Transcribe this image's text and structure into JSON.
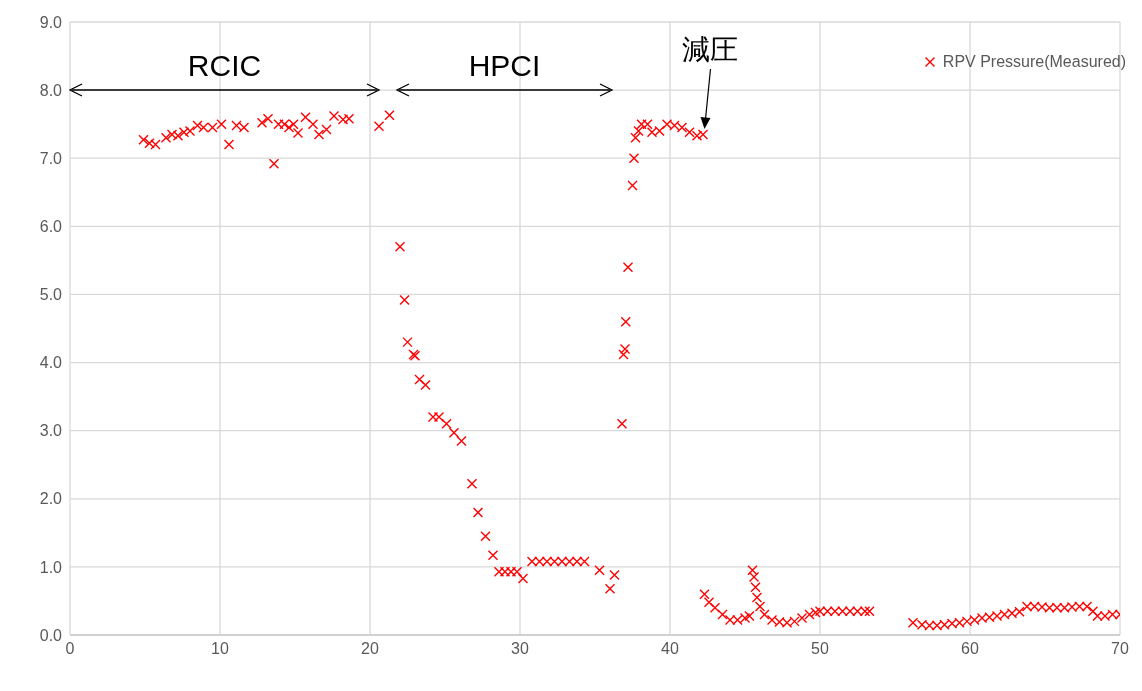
{
  "chart_data": {
    "type": "scatter",
    "marker": "cross",
    "grid": true,
    "legend": "top right",
    "xlim": [
      0,
      70
    ],
    "xticks": [
      0,
      10,
      20,
      30,
      40,
      50,
      60,
      70
    ],
    "ylim": [
      0,
      9
    ],
    "yticks": [
      {
        "value": 0,
        "label": "0.0"
      },
      {
        "value": 1,
        "label": "1.0"
      },
      {
        "value": 2,
        "label": "2.0"
      },
      {
        "value": 3,
        "label": "3.0"
      },
      {
        "value": 4,
        "label": "4.0"
      },
      {
        "value": 5,
        "label": "5.0"
      },
      {
        "value": 6,
        "label": "6.0"
      },
      {
        "value": 7,
        "label": "7.0"
      },
      {
        "value": 8,
        "label": "8.0"
      },
      {
        "value": 9,
        "label": "9.0"
      }
    ],
    "annotations": [
      "RCIC",
      "HPCI",
      {
        "text": "減圧",
        "x": 42.3,
        "y": 7.4
      }
    ],
    "series": [
      {
        "name": "RPV Pressure(Measured)",
        "color": "#ff0000",
        "x": [
          4.9,
          5.3,
          5.7,
          6.4,
          6.8,
          7.2,
          7.6,
          8.0,
          8.5,
          8.9,
          9.5,
          10.1,
          10.6,
          11.1,
          11.6,
          12.8,
          13.2,
          13.6,
          13.9,
          14.3,
          14.6,
          14.9,
          15.2,
          15.7,
          16.2,
          16.6,
          17.1,
          17.6,
          18.2,
          18.6,
          20.6,
          21.3,
          22.0,
          22.3,
          22.5,
          22.9,
          23.0,
          23.3,
          23.7,
          24.2,
          24.6,
          25.1,
          25.6,
          26.1,
          26.8,
          27.2,
          27.7,
          28.2,
          28.6,
          29.0,
          29.4,
          29.8,
          30.2,
          30.8,
          31.3,
          31.8,
          32.3,
          32.8,
          33.3,
          33.8,
          34.3,
          35.3,
          36.0,
          36.3,
          36.8,
          36.9,
          37.0,
          37.05,
          37.2,
          37.5,
          37.6,
          37.7,
          37.9,
          38.1,
          38.5,
          38.8,
          39.3,
          39.8,
          40.3,
          40.8,
          41.3,
          41.8,
          42.2,
          42.3,
          42.6,
          43.0,
          43.5,
          44.0,
          44.5,
          45.0,
          45.3,
          45.5,
          45.6,
          45.7,
          45.8,
          46.0,
          46.3,
          46.8,
          47.3,
          47.8,
          48.3,
          48.8,
          49.3,
          49.7,
          50.0,
          50.5,
          51.0,
          51.5,
          52.0,
          52.5,
          53.0,
          53.3,
          56.2,
          56.8,
          57.3,
          57.8,
          58.3,
          58.8,
          59.3,
          59.8,
          60.3,
          60.8,
          61.3,
          61.8,
          62.3,
          62.8,
          63.3,
          63.8,
          64.3,
          64.8,
          65.3,
          65.8,
          66.3,
          66.8,
          67.3,
          67.8,
          68.2,
          68.5,
          69.0,
          69.5,
          70.0
        ],
        "values": [
          7.27,
          7.22,
          7.2,
          7.3,
          7.35,
          7.33,
          7.38,
          7.4,
          7.48,
          7.45,
          7.45,
          7.5,
          7.2,
          7.48,
          7.45,
          7.52,
          7.58,
          6.92,
          7.5,
          7.5,
          7.45,
          7.5,
          7.37,
          7.6,
          7.5,
          7.35,
          7.42,
          7.62,
          7.57,
          7.58,
          7.47,
          7.63,
          5.7,
          4.92,
          4.3,
          4.12,
          4.1,
          3.75,
          3.67,
          3.2,
          3.2,
          3.1,
          2.97,
          2.85,
          2.22,
          1.8,
          1.45,
          1.17,
          0.93,
          0.93,
          0.93,
          0.93,
          0.83,
          1.08,
          1.08,
          1.08,
          1.08,
          1.08,
          1.08,
          1.08,
          1.08,
          0.95,
          0.68,
          0.88,
          3.1,
          4.12,
          4.2,
          4.6,
          5.4,
          6.6,
          7.0,
          7.3,
          7.4,
          7.5,
          7.5,
          7.38,
          7.4,
          7.5,
          7.48,
          7.45,
          7.38,
          7.33,
          7.35,
          0.6,
          0.48,
          0.4,
          0.3,
          0.22,
          0.22,
          0.25,
          0.28,
          0.95,
          0.85,
          0.7,
          0.55,
          0.42,
          0.3,
          0.22,
          0.19,
          0.18,
          0.2,
          0.25,
          0.3,
          0.33,
          0.35,
          0.35,
          0.35,
          0.35,
          0.35,
          0.35,
          0.35,
          0.35,
          0.18,
          0.15,
          0.14,
          0.14,
          0.15,
          0.17,
          0.18,
          0.2,
          0.22,
          0.25,
          0.26,
          0.28,
          0.3,
          0.32,
          0.34,
          0.42,
          0.42,
          0.41,
          0.4,
          0.4,
          0.4,
          0.41,
          0.42,
          0.42,
          0.35,
          0.28,
          0.28,
          0.3,
          0.3
        ]
      }
    ]
  }
}
